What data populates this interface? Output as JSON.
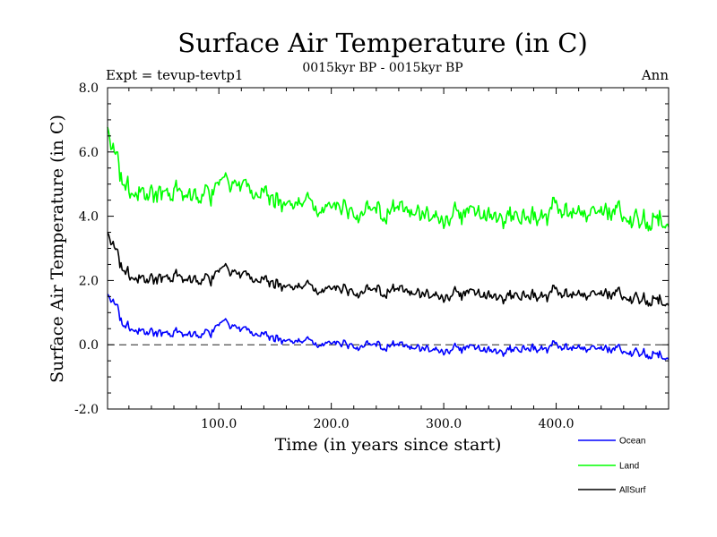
{
  "chart_data": {
    "type": "line",
    "title": "Surface Air Temperature (in C)",
    "subtitle": "0015kyr BP - 0015kyr BP",
    "left_label": "Expt = tevup-tevtp1",
    "right_label": "Ann",
    "xlabel": "Time (in years since start)",
    "ylabel": "Surface Air Temperature (in C)",
    "xlim": [
      1,
      500
    ],
    "ylim": [
      -2.0,
      8.0
    ],
    "x_ticks": [
      100,
      200,
      300,
      400
    ],
    "x_tick_labels": [
      "100.0",
      "200.0",
      "300.0",
      "400.0"
    ],
    "y_ticks": [
      -2,
      0,
      2,
      4,
      6,
      8
    ],
    "y_tick_labels": [
      "-2.0",
      "0.0",
      "2.0",
      "4.0",
      "6.0",
      "8.0"
    ],
    "zero_line": 0.0,
    "legend_position": "bottom-right",
    "series": [
      {
        "name": "Ocean",
        "color": "#0000ff",
        "x": [
          1,
          5,
          10,
          15,
          20,
          30,
          40,
          50,
          60,
          70,
          80,
          90,
          100,
          105,
          110,
          120,
          130,
          140,
          150,
          175,
          200,
          225,
          250,
          275,
          300,
          325,
          350,
          375,
          400,
          425,
          450,
          475,
          500
        ],
        "values": [
          1.5,
          1.4,
          1.2,
          0.5,
          0.5,
          0.45,
          0.4,
          0.3,
          0.35,
          0.3,
          0.3,
          0.4,
          0.7,
          0.8,
          0.65,
          0.5,
          0.4,
          0.3,
          0.2,
          0.1,
          0.05,
          0.0,
          -0.05,
          -0.1,
          -0.15,
          -0.1,
          -0.2,
          -0.1,
          -0.1,
          -0.15,
          -0.2,
          -0.2,
          -0.4
        ]
      },
      {
        "name": "Land",
        "color": "#00ff00",
        "x": [
          1,
          5,
          10,
          15,
          20,
          30,
          40,
          50,
          60,
          70,
          80,
          90,
          100,
          105,
          110,
          120,
          130,
          140,
          150,
          175,
          200,
          225,
          250,
          275,
          300,
          325,
          350,
          375,
          400,
          425,
          450,
          475,
          500
        ],
        "values": [
          6.6,
          6.2,
          5.9,
          4.8,
          4.7,
          4.8,
          4.7,
          4.6,
          4.7,
          4.6,
          4.6,
          4.8,
          5.2,
          5.3,
          5.1,
          5.0,
          4.8,
          4.7,
          4.5,
          4.4,
          4.3,
          4.2,
          4.1,
          4.1,
          4.0,
          4.1,
          4.0,
          4.0,
          4.1,
          4.0,
          4.0,
          4.0,
          3.8
        ]
      },
      {
        "name": "AllSurf",
        "color": "#000000",
        "x": [
          1,
          5,
          10,
          15,
          20,
          30,
          40,
          50,
          60,
          70,
          80,
          90,
          100,
          105,
          110,
          120,
          130,
          140,
          150,
          175,
          200,
          225,
          250,
          275,
          300,
          325,
          350,
          375,
          400,
          425,
          450,
          475,
          500
        ],
        "values": [
          3.4,
          3.2,
          2.9,
          2.2,
          2.1,
          2.1,
          2.05,
          2.0,
          2.1,
          2.0,
          2.0,
          2.1,
          2.4,
          2.5,
          2.35,
          2.2,
          2.1,
          2.0,
          1.9,
          1.8,
          1.75,
          1.7,
          1.65,
          1.6,
          1.55,
          1.6,
          1.5,
          1.55,
          1.55,
          1.5,
          1.5,
          1.5,
          1.3
        ]
      }
    ]
  }
}
